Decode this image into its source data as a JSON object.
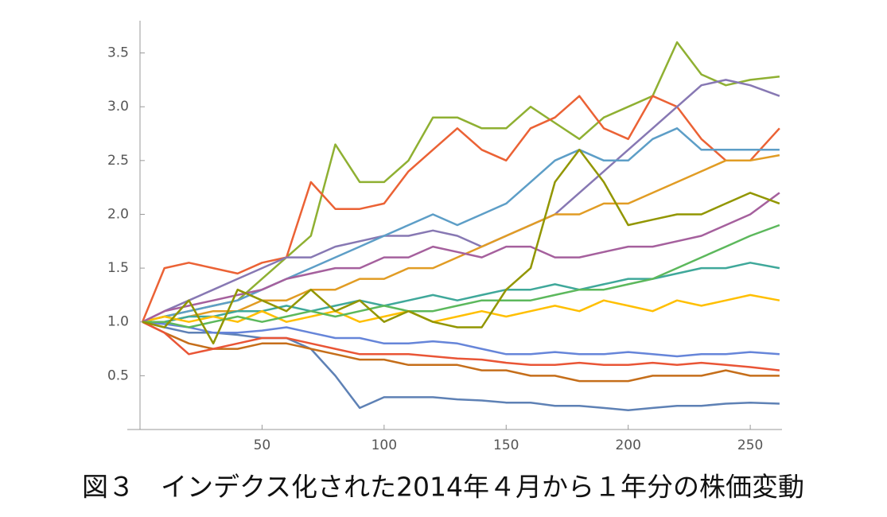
{
  "chart_data": {
    "type": "line",
    "title": "図３　インデクス化された2014年４月から１年分の株価変動",
    "x": [
      1,
      10,
      20,
      30,
      40,
      50,
      60,
      70,
      80,
      90,
      100,
      110,
      120,
      130,
      140,
      150,
      160,
      170,
      180,
      190,
      200,
      210,
      220,
      230,
      240,
      250,
      262
    ],
    "series": [
      {
        "color": "#8fb032",
        "values": [
          1.0,
          1.05,
          1.1,
          1.15,
          1.2,
          1.4,
          1.6,
          1.8,
          2.65,
          2.3,
          2.3,
          2.5,
          2.9,
          2.9,
          2.8,
          2.8,
          3.0,
          2.85,
          2.7,
          2.9,
          3.0,
          3.1,
          3.6,
          3.3,
          3.2,
          3.25,
          3.28
        ]
      },
      {
        "color": "#eb6235",
        "values": [
          1.0,
          1.5,
          1.55,
          1.5,
          1.45,
          1.55,
          1.6,
          2.3,
          2.05,
          2.05,
          2.1,
          2.4,
          2.6,
          2.8,
          2.6,
          2.5,
          2.8,
          2.9,
          3.1,
          2.8,
          2.7,
          3.1,
          3.0,
          2.7,
          2.5,
          2.5,
          2.8
        ]
      },
      {
        "color": "#5e81b5",
        "values": [
          1.0,
          0.95,
          0.9,
          0.9,
          0.88,
          0.85,
          0.85,
          0.75,
          0.5,
          0.2,
          0.3,
          0.3,
          0.3,
          0.28,
          0.27,
          0.25,
          0.25,
          0.22,
          0.22,
          0.2,
          0.18,
          0.2,
          0.22,
          0.22,
          0.24,
          0.25,
          0.24
        ]
      },
      {
        "color": "#8778b3",
        "values": [
          1.0,
          1.1,
          1.2,
          1.3,
          1.4,
          1.5,
          1.6,
          1.6,
          1.7,
          1.75,
          1.8,
          1.8,
          1.85,
          1.8,
          1.7,
          1.8,
          1.9,
          2.0,
          2.2,
          2.4,
          2.6,
          2.8,
          3.0,
          3.2,
          3.25,
          3.2,
          3.1
        ]
      },
      {
        "color": "#5d9ec7",
        "values": [
          1.0,
          1.05,
          1.1,
          1.15,
          1.2,
          1.3,
          1.4,
          1.5,
          1.6,
          1.7,
          1.8,
          1.9,
          2.0,
          1.9,
          2.0,
          2.1,
          2.3,
          2.5,
          2.6,
          2.5,
          2.5,
          2.7,
          2.8,
          2.6,
          2.6,
          2.6,
          2.6
        ]
      },
      {
        "color": "#e19c24",
        "values": [
          1.0,
          1.0,
          1.05,
          1.1,
          1.1,
          1.2,
          1.2,
          1.3,
          1.3,
          1.4,
          1.4,
          1.5,
          1.5,
          1.6,
          1.7,
          1.8,
          1.9,
          2.0,
          2.0,
          2.1,
          2.1,
          2.2,
          2.3,
          2.4,
          2.5,
          2.5,
          2.55
        ]
      },
      {
        "color": "#c56e1a",
        "values": [
          1.0,
          0.9,
          0.8,
          0.75,
          0.75,
          0.8,
          0.8,
          0.75,
          0.7,
          0.65,
          0.65,
          0.6,
          0.6,
          0.6,
          0.55,
          0.55,
          0.5,
          0.5,
          0.45,
          0.45,
          0.45,
          0.5,
          0.5,
          0.5,
          0.55,
          0.5,
          0.5
        ]
      },
      {
        "color": "#3fa89a",
        "values": [
          1.0,
          1.0,
          1.05,
          1.05,
          1.1,
          1.1,
          1.15,
          1.1,
          1.15,
          1.2,
          1.15,
          1.2,
          1.25,
          1.2,
          1.25,
          1.3,
          1.3,
          1.35,
          1.3,
          1.35,
          1.4,
          1.4,
          1.45,
          1.5,
          1.5,
          1.55,
          1.5
        ]
      },
      {
        "color": "#e95536",
        "values": [
          1.0,
          0.9,
          0.7,
          0.75,
          0.8,
          0.85,
          0.85,
          0.8,
          0.75,
          0.7,
          0.7,
          0.7,
          0.68,
          0.66,
          0.65,
          0.62,
          0.6,
          0.6,
          0.62,
          0.6,
          0.6,
          0.62,
          0.6,
          0.62,
          0.6,
          0.58,
          0.55
        ]
      },
      {
        "color": "#ffbf00",
        "values": [
          1.0,
          1.05,
          1.0,
          1.05,
          1.0,
          1.1,
          1.0,
          1.05,
          1.1,
          1.0,
          1.05,
          1.1,
          1.0,
          1.05,
          1.1,
          1.05,
          1.1,
          1.15,
          1.1,
          1.2,
          1.15,
          1.1,
          1.2,
          1.15,
          1.2,
          1.25,
          1.2
        ]
      },
      {
        "color": "#6685d9",
        "values": [
          1.0,
          0.98,
          0.95,
          0.9,
          0.9,
          0.92,
          0.95,
          0.9,
          0.85,
          0.85,
          0.8,
          0.8,
          0.82,
          0.8,
          0.75,
          0.7,
          0.7,
          0.72,
          0.7,
          0.7,
          0.72,
          0.7,
          0.68,
          0.7,
          0.7,
          0.72,
          0.7
        ]
      },
      {
        "color": "#a5609d",
        "values": [
          1.0,
          1.1,
          1.15,
          1.2,
          1.25,
          1.3,
          1.4,
          1.45,
          1.5,
          1.5,
          1.6,
          1.6,
          1.7,
          1.65,
          1.6,
          1.7,
          1.7,
          1.6,
          1.6,
          1.65,
          1.7,
          1.7,
          1.75,
          1.8,
          1.9,
          2.0,
          2.2
        ]
      },
      {
        "color": "#5cb85c",
        "values": [
          1.0,
          1.0,
          0.95,
          1.0,
          1.05,
          1.0,
          1.05,
          1.1,
          1.05,
          1.1,
          1.15,
          1.1,
          1.1,
          1.15,
          1.2,
          1.2,
          1.2,
          1.25,
          1.3,
          1.3,
          1.35,
          1.4,
          1.5,
          1.6,
          1.7,
          1.8,
          1.9
        ]
      },
      {
        "color": "#929600",
        "values": [
          1.0,
          0.95,
          1.2,
          0.8,
          1.3,
          1.2,
          1.1,
          1.3,
          1.1,
          1.2,
          1.0,
          1.1,
          1.0,
          0.95,
          0.95,
          1.3,
          1.5,
          2.3,
          2.6,
          2.3,
          1.9,
          1.95,
          2.0,
          2.0,
          2.1,
          2.2,
          2.1
        ]
      }
    ],
    "xlim": [
      0,
      263
    ],
    "xticks": [
      50,
      100,
      150,
      200,
      250
    ],
    "ylim": [
      0,
      3.8
    ],
    "yticks": [
      0.5,
      {
        "value": 1,
        "label": "1.0"
      },
      1.5,
      {
        "value": 2,
        "label": "2.0"
      },
      2.5,
      {
        "value": 3,
        "label": "3.0"
      },
      3.5
    ]
  }
}
